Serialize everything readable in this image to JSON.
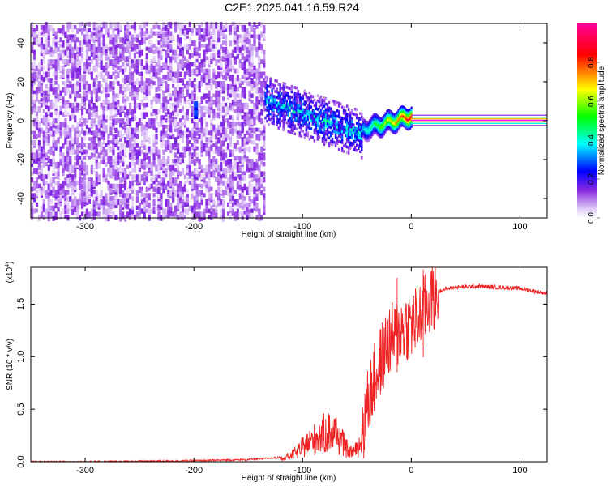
{
  "title": "C2E1.2025.041.16.59.R24",
  "chart_data": [
    {
      "type": "heatmap",
      "xlabel": "Height of straight line (km)",
      "ylabel": "Frequency (Hz)",
      "xlim": [
        -350,
        125
      ],
      "ylim": [
        -50,
        50
      ],
      "x_ticks": [
        -300,
        -200,
        -100,
        0,
        100
      ],
      "y_ticks": [
        -40,
        -20,
        0,
        20,
        40
      ],
      "colorbar": {
        "label": "Normalized spectral amplitude",
        "range": [
          0,
          1
        ],
        "ticks": [
          "0.0",
          "0.2",
          "0.4",
          "0.6",
          "0.8"
        ],
        "colormap": [
          "#ffffff",
          "#8a2be2",
          "#0000ff",
          "#00ffff",
          "#00ff00",
          "#ffff00",
          "#ff0000",
          "#ff00ff"
        ]
      },
      "regions": [
        {
          "x_range": [
            -350,
            -135
          ],
          "freq_range": [
            -50,
            50
          ],
          "amplitude": "0.0-0.15",
          "pattern": "noise"
        },
        {
          "x_range": [
            -200,
            -195
          ],
          "freq_center": 5,
          "amplitude": 0.35
        },
        {
          "x_range": [
            -135,
            -45
          ],
          "freq_center_start": 10,
          "freq_center_end": -8,
          "amplitude": "0.2-0.5"
        },
        {
          "x_range": [
            -45,
            0
          ],
          "freq_center_start": -5,
          "freq_center_end": 2,
          "amplitude": "0.4-0.9"
        },
        {
          "x_range": [
            0,
            125
          ],
          "freq_center": 0,
          "amplitude": 1.0
        }
      ]
    },
    {
      "type": "line",
      "xlabel": "Height of straight line (km)",
      "ylabel": "SNR (10 * v/v)",
      "y_multiplier": "(x10",
      "y_multiplier_exp": "4",
      "y_multiplier_close": ")",
      "xlim": [
        -350,
        125
      ],
      "ylim": [
        0,
        1.85
      ],
      "x_ticks": [
        -300,
        -200,
        -100,
        0,
        100
      ],
      "y_ticks": [
        "0.0",
        "0.5",
        "1.0",
        "1.5"
      ],
      "series": [
        {
          "color": "#ee2222",
          "x": [
            -350,
            -300,
            -250,
            -200,
            -150,
            -120,
            -110,
            -100,
            -90,
            -80,
            -75,
            -70,
            -65,
            -60,
            -55,
            -50,
            -45,
            -40,
            -35,
            -30,
            -25,
            -20,
            -15,
            -10,
            -5,
            0,
            5,
            10,
            15,
            20,
            25,
            30,
            40,
            60,
            80,
            100,
            110,
            125
          ],
          "y": [
            0.0,
            0.0,
            0.005,
            0.01,
            0.02,
            0.04,
            0.08,
            0.18,
            0.28,
            0.36,
            0.38,
            0.36,
            0.28,
            0.17,
            0.12,
            0.15,
            0.3,
            0.55,
            0.75,
            0.9,
            1.05,
            1.15,
            1.2,
            1.25,
            1.3,
            1.3,
            1.35,
            1.4,
            1.5,
            1.58,
            1.62,
            1.64,
            1.66,
            1.67,
            1.66,
            1.65,
            1.63,
            1.6
          ]
        }
      ],
      "spikes": [
        {
          "x": -13,
          "y": 1.75
        },
        {
          "x": 11,
          "y": 1.83
        },
        {
          "x": -28,
          "y": 1.17
        }
      ]
    }
  ]
}
